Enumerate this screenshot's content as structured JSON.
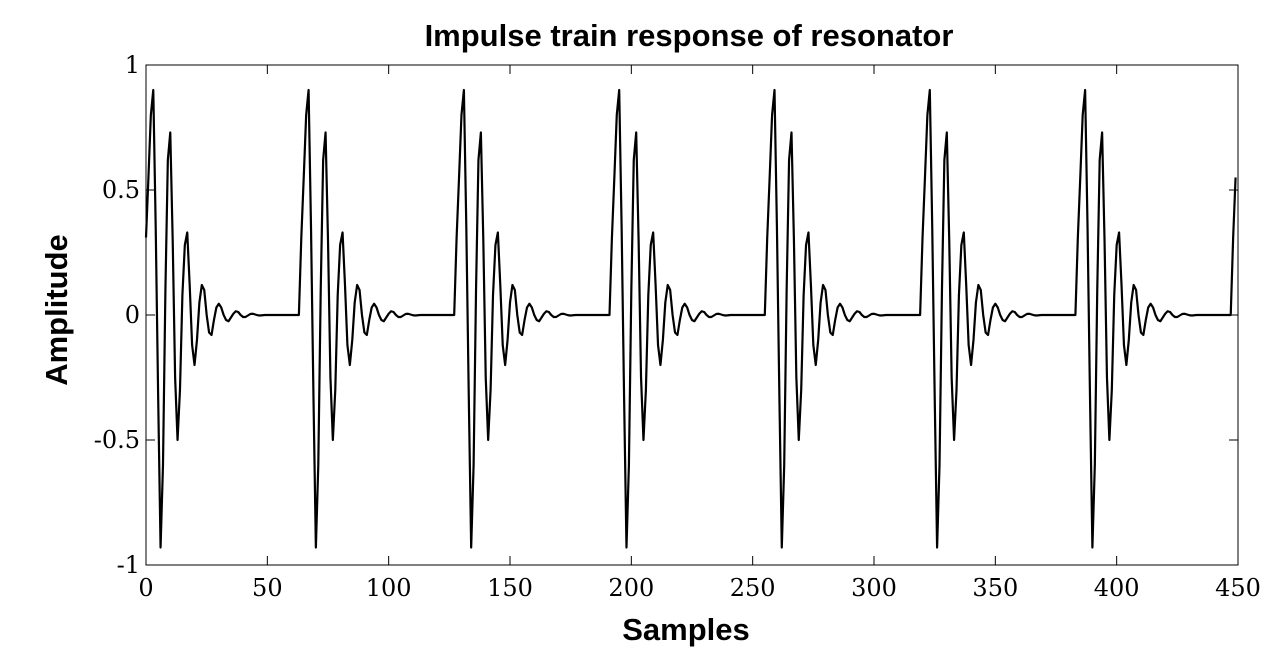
{
  "chart_data": {
    "type": "line",
    "title": "Impulse train response of resonator",
    "xlabel": "Samples",
    "ylabel": "Amplitude",
    "xlim": [
      0,
      450
    ],
    "ylim": [
      -1,
      1
    ],
    "xticks": [
      0,
      50,
      100,
      150,
      200,
      250,
      300,
      350,
      400,
      450
    ],
    "yticks": [
      -1,
      -0.5,
      0,
      0.5,
      1
    ],
    "xtick_labels": [
      "0",
      "50",
      "100",
      "150",
      "200",
      "250",
      "300",
      "350",
      "400",
      "450"
    ],
    "ytick_labels": [
      "-1",
      "-0.5",
      "0",
      "0.5",
      "1"
    ],
    "grid": false,
    "legend": "none",
    "line_color": "#000000",
    "impulse_period": 64,
    "impulse_onsets": [
      0,
      64,
      128,
      192,
      256,
      320,
      384,
      448
    ],
    "series": [
      {
        "x": [
          0,
          1,
          2,
          3,
          4,
          5,
          6,
          7,
          8,
          9,
          10,
          11,
          12,
          13,
          14,
          15,
          16,
          17,
          18,
          19,
          20,
          21,
          22,
          23,
          24,
          25,
          26,
          27,
          28,
          29,
          30,
          31,
          32,
          33,
          34,
          35,
          36,
          37,
          38,
          39,
          40,
          41,
          42,
          43,
          44,
          45,
          46,
          47,
          48,
          49,
          50,
          51,
          52,
          53,
          54,
          55,
          56,
          57,
          58,
          59,
          60,
          61,
          62,
          63
        ],
        "y": [
          0.31,
          0.55,
          0.8,
          0.9,
          0.35,
          -0.32,
          -0.93,
          -0.6,
          0.1,
          0.62,
          0.73,
          0.3,
          -0.25,
          -0.5,
          -0.3,
          0.08,
          0.28,
          0.33,
          0.12,
          -0.12,
          -0.2,
          -0.1,
          0.05,
          0.12,
          0.1,
          0.0,
          -0.07,
          -0.08,
          -0.02,
          0.03,
          0.045,
          0.03,
          0.0,
          -0.02,
          -0.025,
          -0.01,
          0.005,
          0.015,
          0.012,
          0.0,
          -0.008,
          -0.008,
          -0.002,
          0.004,
          0.005,
          0.002,
          -0.001,
          -0.002,
          -0.001,
          0.0,
          0.0,
          0.0,
          0.0,
          0.0,
          0.0,
          0.0,
          0.0,
          0.0,
          0.0,
          0.0,
          0.0,
          0.0,
          0.0,
          0.0
        ]
      }
    ]
  }
}
